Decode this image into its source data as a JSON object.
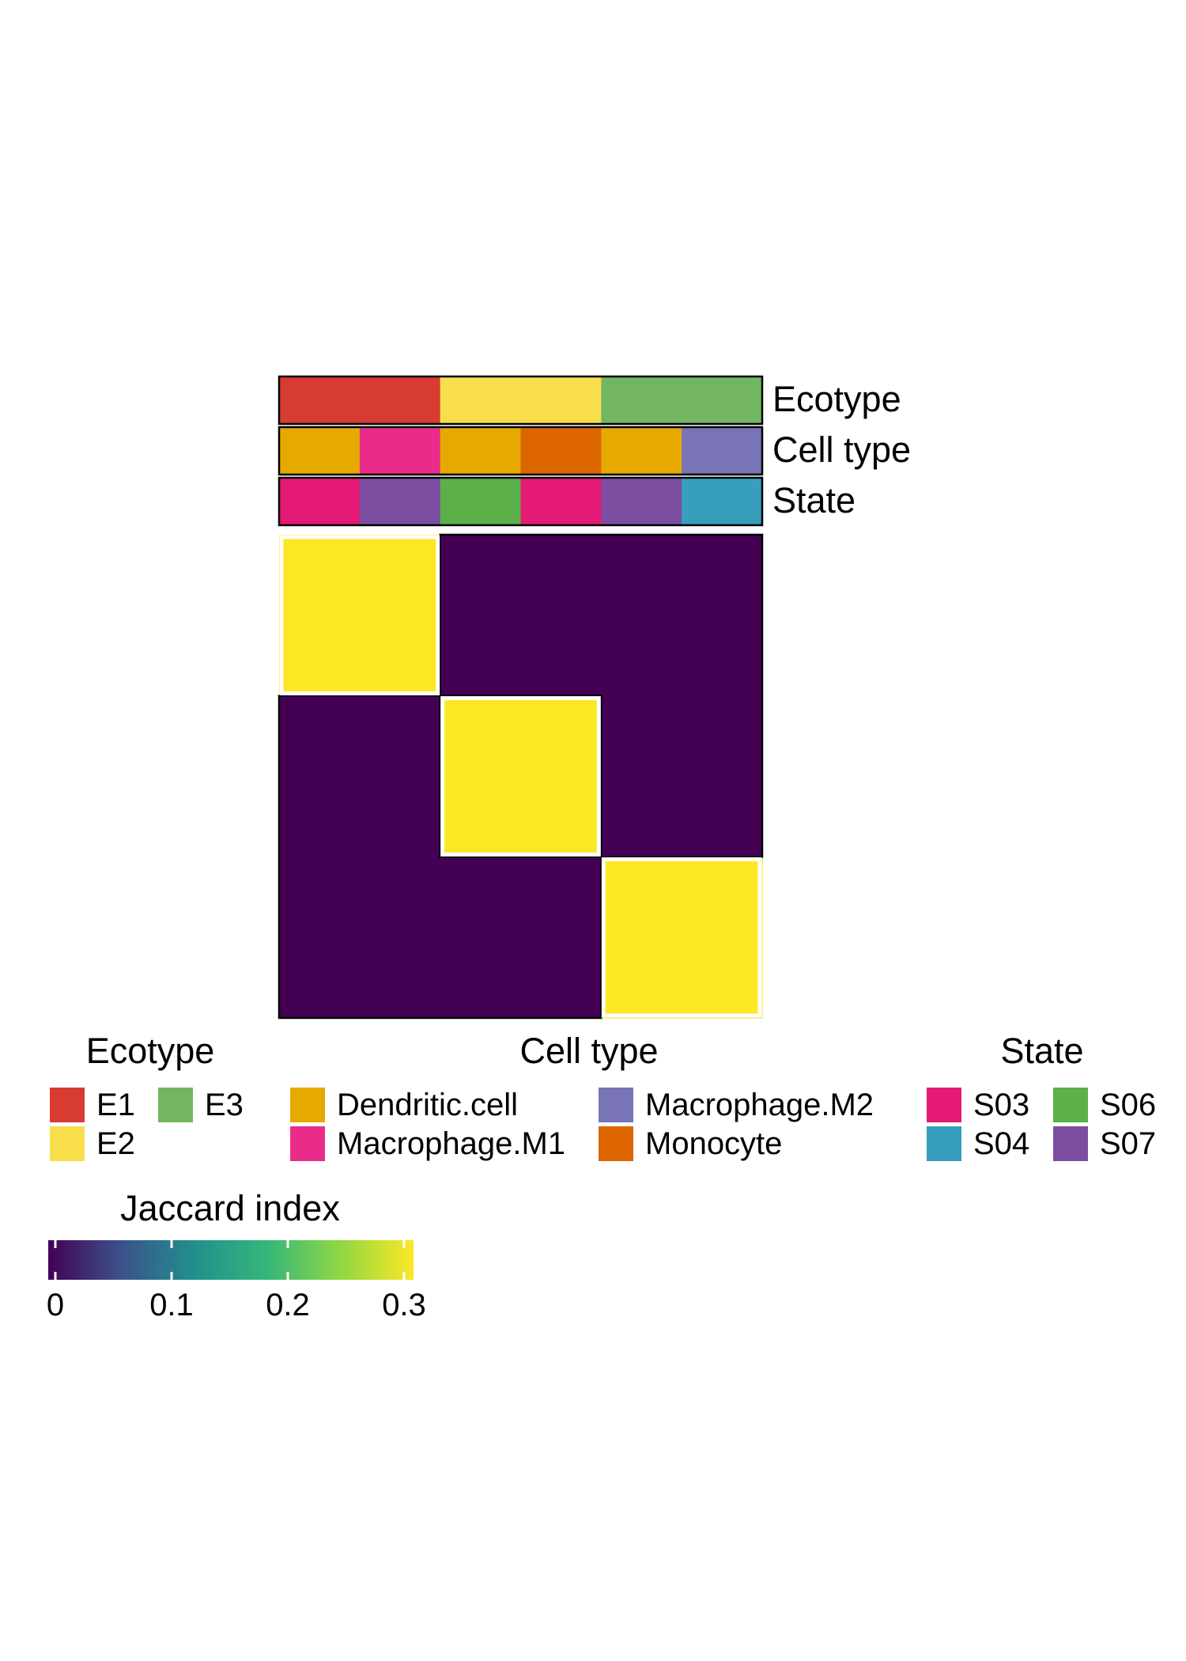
{
  "chart_data": {
    "type": "heatmap",
    "title": "",
    "annotation_tracks": [
      {
        "name": "Ecotype",
        "cells": [
          "E1",
          "E1",
          "E2",
          "E2",
          "E3",
          "E3"
        ]
      },
      {
        "name": "Cell type",
        "cells": [
          "Dendritic.cell",
          "Macrophage.M1",
          "Dendritic.cell",
          "Monocyte",
          "Dendritic.cell",
          "Macrophage.M2"
        ]
      },
      {
        "name": "State",
        "cells": [
          "S03",
          "S07",
          "S06",
          "S03",
          "S07",
          "S04"
        ]
      }
    ],
    "groups": [
      "E1",
      "E2",
      "E3"
    ],
    "matrix": [
      [
        0.31,
        0.31,
        0,
        0,
        0,
        0
      ],
      [
        0.31,
        0.31,
        0,
        0,
        0,
        0
      ],
      [
        0,
        0,
        0.31,
        0.31,
        0,
        0
      ],
      [
        0,
        0,
        0.31,
        0.31,
        0,
        0
      ],
      [
        0,
        0,
        0,
        0,
        0.31,
        0.31
      ],
      [
        0,
        0,
        0,
        0,
        0.31,
        0.31
      ]
    ],
    "color_scale": {
      "title": "Jaccard index",
      "min": 0,
      "max": 0.31,
      "ticks": [
        0,
        0.1,
        0.2,
        0.3
      ],
      "tick_labels": [
        "0",
        "0.1",
        "0.2",
        "0.3"
      ],
      "palette": "viridis",
      "stops": [
        "#440154",
        "#3B528B",
        "#21908C",
        "#35B779",
        "#90D743",
        "#FDE725"
      ]
    },
    "legends": [
      {
        "title": "Ecotype",
        "entries": [
          {
            "label": "E1",
            "color": "#D73B32"
          },
          {
            "label": "E2",
            "color": "#F9DE4C"
          },
          {
            "label": "E3",
            "color": "#73B662"
          }
        ]
      },
      {
        "title": "Cell type",
        "entries": [
          {
            "label": "Dendritic.cell",
            "color": "#E5A900"
          },
          {
            "label": "Macrophage.M1",
            "color": "#E92C8A"
          },
          {
            "label": "Macrophage.M2",
            "color": "#7874B6"
          },
          {
            "label": "Monocyte",
            "color": "#DD6500"
          }
        ]
      },
      {
        "title": "State",
        "entries": [
          {
            "label": "S03",
            "color": "#E41A74"
          },
          {
            "label": "S04",
            "color": "#379FBB"
          },
          {
            "label": "S06",
            "color": "#5BB04A"
          },
          {
            "label": "S07",
            "color": "#7D4DA2"
          }
        ]
      }
    ]
  }
}
